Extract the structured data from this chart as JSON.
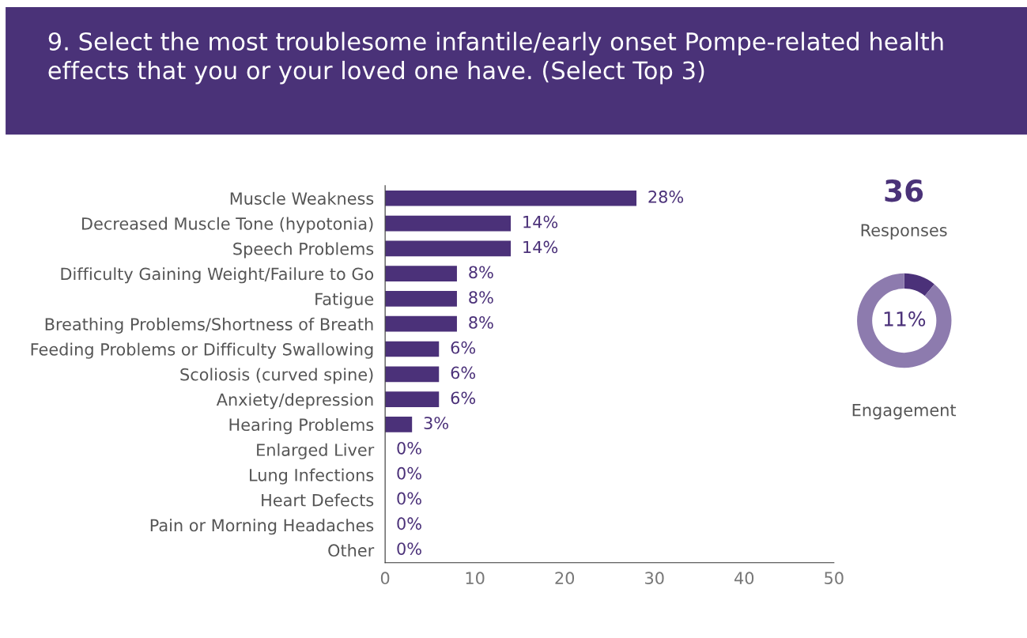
{
  "chart_data": [
    {
      "type": "bar",
      "orientation": "horizontal",
      "title": "9. Select the most troublesome infantile/early onset Pompe-related health effects that you or your loved one have. (Select Top 3)",
      "categories": [
        "Muscle Weakness",
        "Decreased Muscle Tone (hypotonia)",
        "Speech Problems",
        "Difficulty Gaining Weight/Failure to Go",
        "Fatigue",
        "Breathing Problems/Shortness of Breath",
        "Feeding Problems or Difficulty Swallowing",
        "Scoliosis (curved spine)",
        "Anxiety/depression",
        "Hearing Problems",
        "Enlarged Liver",
        "Lung Infections",
        "Heart Defects",
        "Pain or Morning Headaches",
        "Other"
      ],
      "values": [
        28,
        14,
        14,
        8,
        8,
        8,
        6,
        6,
        6,
        3,
        0,
        0,
        0,
        0,
        0
      ],
      "value_labels": [
        "28%",
        "14%",
        "14%",
        "8%",
        "8%",
        "8%",
        "6%",
        "6%",
        "6%",
        "3%",
        "0%",
        "0%",
        "0%",
        "0%",
        "0%"
      ],
      "color": "#4b3179",
      "xlim": [
        0,
        50
      ],
      "xticks": [
        0,
        10,
        20,
        30,
        40,
        50
      ],
      "grid": false,
      "legend": false
    },
    {
      "type": "other",
      "title": "36",
      "subtitle": "Responses"
    },
    {
      "type": "donut",
      "categories": [
        null,
        null
      ],
      "values": [
        11,
        89
      ],
      "colors": [
        "#4b3179",
        "#8d7bae"
      ],
      "value_labels": [
        "11%",
        null
      ],
      "annotations": [
        "Engagement"
      ],
      "legend": false
    }
  ]
}
